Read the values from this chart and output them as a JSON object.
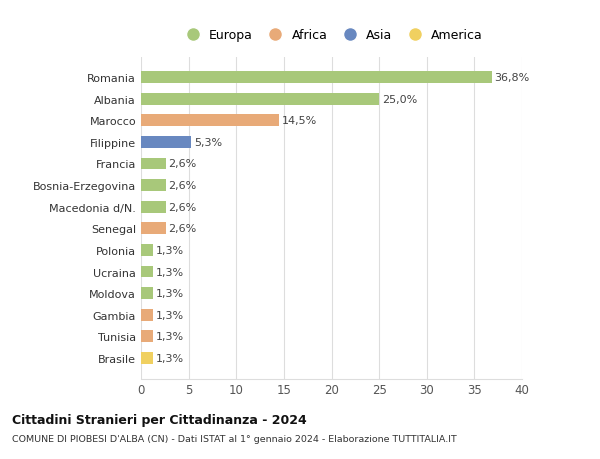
{
  "categories": [
    "Brasile",
    "Tunisia",
    "Gambia",
    "Moldova",
    "Ucraina",
    "Polonia",
    "Senegal",
    "Macedonia d/N.",
    "Bosnia-Erzegovina",
    "Francia",
    "Filippine",
    "Marocco",
    "Albania",
    "Romania"
  ],
  "values": [
    1.3,
    1.3,
    1.3,
    1.3,
    1.3,
    1.3,
    2.6,
    2.6,
    2.6,
    2.6,
    5.3,
    14.5,
    25.0,
    36.8
  ],
  "labels": [
    "1,3%",
    "1,3%",
    "1,3%",
    "1,3%",
    "1,3%",
    "1,3%",
    "2,6%",
    "2,6%",
    "2,6%",
    "2,6%",
    "5,3%",
    "14,5%",
    "25,0%",
    "36,8%"
  ],
  "continents": [
    "America",
    "Africa",
    "Africa",
    "Europa",
    "Europa",
    "Europa",
    "Africa",
    "Europa",
    "Europa",
    "Europa",
    "Asia",
    "Africa",
    "Europa",
    "Europa"
  ],
  "colors": {
    "Europa": "#a8c87a",
    "Africa": "#e8aa78",
    "Asia": "#6888c0",
    "America": "#f0d060"
  },
  "legend_order": [
    "Europa",
    "Africa",
    "Asia",
    "America"
  ],
  "title": "Cittadini Stranieri per Cittadinanza - 2024",
  "subtitle": "COMUNE DI PIOBESI D'ALBA (CN) - Dati ISTAT al 1° gennaio 2024 - Elaborazione TUTTITALIA.IT",
  "xlim": [
    0,
    40
  ],
  "xticks": [
    0,
    5,
    10,
    15,
    20,
    25,
    30,
    35,
    40
  ],
  "bg_color": "#ffffff",
  "grid_color": "#dddddd",
  "bar_height": 0.55
}
